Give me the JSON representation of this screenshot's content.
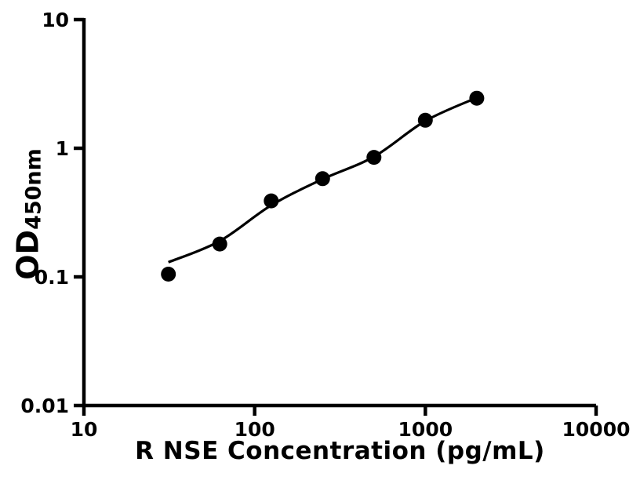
{
  "figure": {
    "background": "#ffffff"
  },
  "chart_data": {
    "type": "scatter",
    "title": "",
    "xlabel": "R NSE Concentration (pg/mL)",
    "ylabel_main": "OD",
    "ylabel_sub": "450nm",
    "x_scale": "log",
    "y_scale": "log",
    "xlim": [
      10,
      10000
    ],
    "ylim": [
      0.01,
      10
    ],
    "grid": false,
    "legend": "none",
    "axis_color": "#000000",
    "marker_color": "#000000",
    "line_color": "#000000",
    "x_ticks": [
      {
        "value": 10,
        "label": "10"
      },
      {
        "value": 100,
        "label": "100"
      },
      {
        "value": 1000,
        "label": "1000"
      },
      {
        "value": 10000,
        "label": "10000"
      }
    ],
    "y_ticks": [
      {
        "value": 10,
        "label": "10"
      },
      {
        "value": 1,
        "label": "1"
      },
      {
        "value": 0.1,
        "label": "0.1"
      },
      {
        "value": 0.01,
        "label": "0.01"
      }
    ],
    "series": [
      {
        "name": "standard-points",
        "type": "scatter",
        "x": [
          31.25,
          62.5,
          125,
          250,
          500,
          1000,
          2000
        ],
        "y": [
          0.105,
          0.18,
          0.39,
          0.58,
          0.85,
          1.65,
          2.45
        ]
      }
    ],
    "fit_curve": {
      "name": "4pl-fit",
      "x": [
        31.25,
        62.5,
        125,
        250,
        500,
        1000,
        2000
      ],
      "y": [
        0.13,
        0.19,
        0.36,
        0.575,
        0.86,
        1.63,
        2.47
      ]
    }
  }
}
